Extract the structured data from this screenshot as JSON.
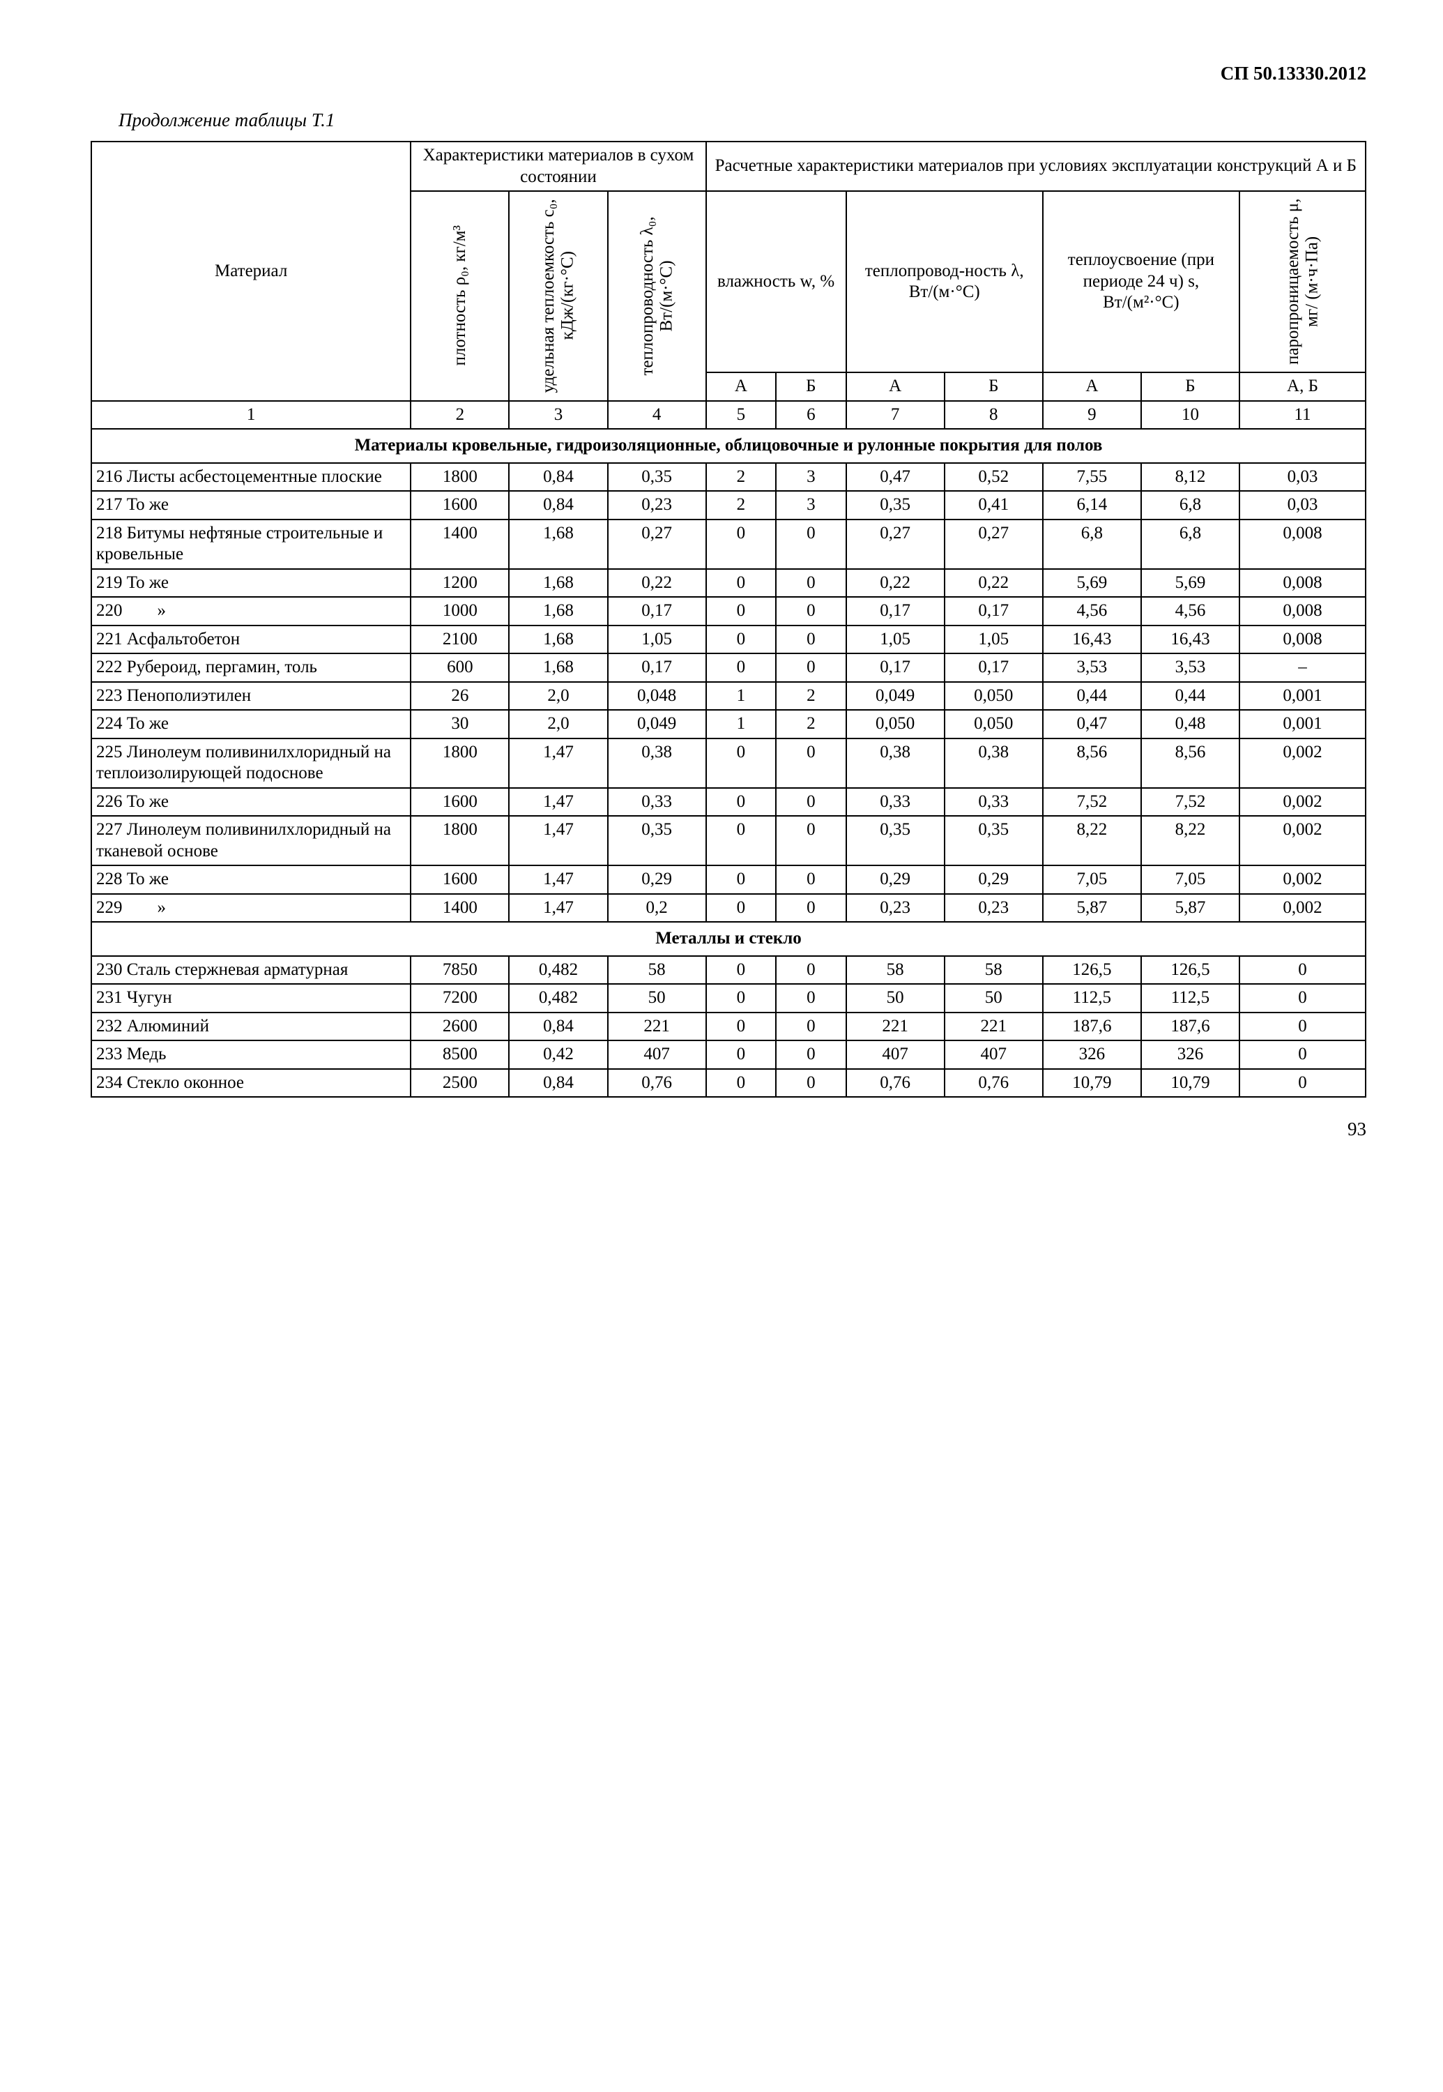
{
  "doc_code": "СП 50.13330.2012",
  "caption": "Продолжение таблицы Т.1",
  "page_number": "93",
  "colors": {
    "background": "#ffffff",
    "text": "#000000",
    "border": "#000000"
  },
  "table": {
    "border_width_outer": 3,
    "border_width_inner": 2,
    "font_size": 25,
    "header": {
      "material": "Материал",
      "dry_group": "Характеристики материалов в сухом состоянии",
      "calc_group": "Расчетные характеристики материалов при условиях эксплуатации конструкций А и Б",
      "density": "плотность ρ₀, кг/м³",
      "heat_cap": "удельная теплоемкость c₀, кДж/(кг·°C)",
      "conduct": "теплопроводность λ₀, Вт/(м·°C)",
      "humidity": "влажность w, %",
      "calc_conduct": "теплопровод-ность λ, Вт/(м·°C)",
      "absorption": "теплоусвоение (при периоде 24 ч) s, Вт/(м²·°C)",
      "perm": "паропроницаемость μ, мг/ (м·ч·Па)",
      "A": "А",
      "B": "Б",
      "AB": "А, Б"
    },
    "num_row": [
      "1",
      "2",
      "3",
      "4",
      "5",
      "6",
      "7",
      "8",
      "9",
      "10",
      "11"
    ],
    "sections": [
      {
        "title": "Материалы кровельные, гидроизоляционные, облицовочные и рулонные покрытия для полов",
        "rows": [
          [
            "216 Листы асбестоцементные плоские",
            "1800",
            "0,84",
            "0,35",
            "2",
            "3",
            "0,47",
            "0,52",
            "7,55",
            "8,12",
            "0,03"
          ],
          [
            "217 То же",
            "1600",
            "0,84",
            "0,23",
            "2",
            "3",
            "0,35",
            "0,41",
            "6,14",
            "6,8",
            "0,03"
          ],
          [
            "218 Битумы нефтяные строительные и кровельные",
            "1400",
            "1,68",
            "0,27",
            "0",
            "0",
            "0,27",
            "0,27",
            "6,8",
            "6,8",
            "0,008"
          ],
          [
            "219 То же",
            "1200",
            "1,68",
            "0,22",
            "0",
            "0",
            "0,22",
            "0,22",
            "5,69",
            "5,69",
            "0,008"
          ],
          [
            "220  »",
            "1000",
            "1,68",
            "0,17",
            "0",
            "0",
            "0,17",
            "0,17",
            "4,56",
            "4,56",
            "0,008"
          ],
          [
            "221 Асфальтобетон",
            "2100",
            "1,68",
            "1,05",
            "0",
            "0",
            "1,05",
            "1,05",
            "16,43",
            "16,43",
            "0,008"
          ],
          [
            "222 Рубероид, пергамин, толь",
            "600",
            "1,68",
            "0,17",
            "0",
            "0",
            "0,17",
            "0,17",
            "3,53",
            "3,53",
            "–"
          ],
          [
            "223 Пенополиэтилен",
            "26",
            "2,0",
            "0,048",
            "1",
            "2",
            "0,049",
            "0,050",
            "0,44",
            "0,44",
            "0,001"
          ],
          [
            "224 То же",
            "30",
            "2,0",
            "0,049",
            "1",
            "2",
            "0,050",
            "0,050",
            "0,47",
            "0,48",
            "0,001"
          ],
          [
            "225 Линолеум поливинилхлоридный на теплоизолирующей подоснове",
            "1800",
            "1,47",
            "0,38",
            "0",
            "0",
            "0,38",
            "0,38",
            "8,56",
            "8,56",
            "0,002"
          ],
          [
            "226 То же",
            "1600",
            "1,47",
            "0,33",
            "0",
            "0",
            "0,33",
            "0,33",
            "7,52",
            "7,52",
            "0,002"
          ],
          [
            "227 Линолеум поливинилхлоридный на тканевой основе",
            "1800",
            "1,47",
            "0,35",
            "0",
            "0",
            "0,35",
            "0,35",
            "8,22",
            "8,22",
            "0,002"
          ],
          [
            "228 То же",
            "1600",
            "1,47",
            "0,29",
            "0",
            "0",
            "0,29",
            "0,29",
            "7,05",
            "7,05",
            "0,002"
          ],
          [
            "229  »",
            "1400",
            "1,47",
            "0,2",
            "0",
            "0",
            "0,23",
            "0,23",
            "5,87",
            "5,87",
            "0,002"
          ]
        ]
      },
      {
        "title": "Металлы и стекло",
        "rows": [
          [
            "230 Сталь стержневая арматурная",
            "7850",
            "0,482",
            "58",
            "0",
            "0",
            "58",
            "58",
            "126,5",
            "126,5",
            "0"
          ],
          [
            "231 Чугун",
            "7200",
            "0,482",
            "50",
            "0",
            "0",
            "50",
            "50",
            "112,5",
            "112,5",
            "0"
          ],
          [
            "232 Алюминий",
            "2600",
            "0,84",
            "221",
            "0",
            "0",
            "221",
            "221",
            "187,6",
            "187,6",
            "0"
          ],
          [
            "233 Медь",
            "8500",
            "0,42",
            "407",
            "0",
            "0",
            "407",
            "407",
            "326",
            "326",
            "0"
          ],
          [
            "234 Стекло оконное",
            "2500",
            "0,84",
            "0,76",
            "0",
            "0",
            "0,76",
            "0,76",
            "10,79",
            "10,79",
            "0"
          ]
        ]
      }
    ]
  }
}
